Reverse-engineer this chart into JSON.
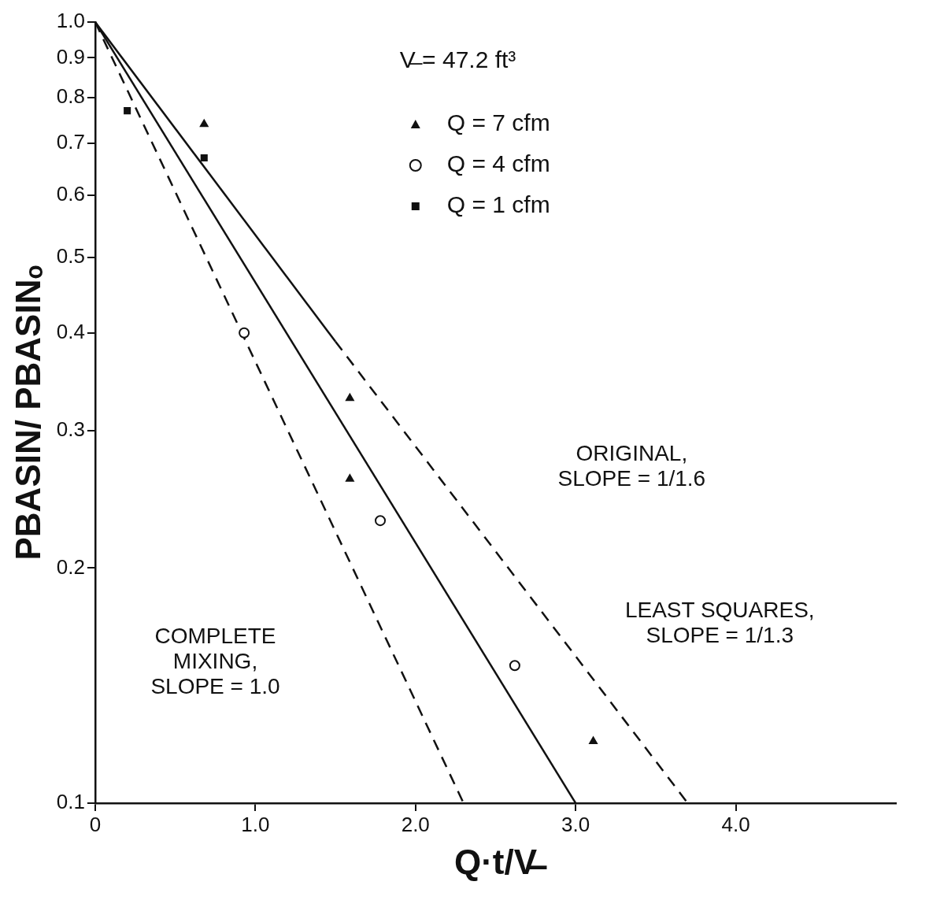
{
  "chart_data": {
    "type": "scatter",
    "xlabel": "Q·t/V̶",
    "ylabel": "PBASIN/ PBASINₒ",
    "log": "y",
    "grid": false,
    "legend": "top",
    "legend_title": "V̶ = 47.2 ft³",
    "xlim": [
      0,
      5
    ],
    "xticks": [
      0,
      {
        "value": 1,
        "label": "1.0"
      },
      {
        "value": 2,
        "label": "2.0"
      },
      {
        "value": 3,
        "label": "3.0"
      },
      {
        "value": 4,
        "label": "4.0"
      }
    ],
    "ylim": [
      0.1,
      1
    ],
    "yticks": [
      0.1,
      0.2,
      0.3,
      0.4,
      0.5,
      0.6,
      0.7,
      0.8,
      0.9,
      {
        "value": 1,
        "label": "1.0"
      }
    ],
    "series": [
      {
        "name": "Q = 7 cfm",
        "type": "scatter",
        "marker": "triangle",
        "color": "#111111",
        "x": [
          0.68,
          1.59,
          1.59,
          3.11
        ],
        "values": [
          0.74,
          0.33,
          0.26,
          0.12
        ]
      },
      {
        "name": "Q = 4 cfm",
        "type": "scatter",
        "marker": "circle",
        "color": "#111111",
        "x": [
          0.93,
          1.78,
          2.62
        ],
        "values": [
          0.4,
          0.23,
          0.15
        ]
      },
      {
        "name": "Q = 1 cfm",
        "type": "scatter",
        "marker": "square",
        "color": "#111111",
        "x": [
          0.2,
          0.68
        ],
        "values": [
          0.77,
          0.67
        ]
      },
      {
        "type": "line",
        "marker": "none",
        "line_style": "solid",
        "color": "#111111",
        "x": [
          0,
          1.5
        ],
        "values": [
          1,
          0.39
        ]
      },
      {
        "type": "line",
        "marker": "none",
        "line_style": "dashed",
        "color": "#111111",
        "x": [
          1.5,
          3.7
        ],
        "values": [
          0.39,
          0.1
        ]
      },
      {
        "type": "line",
        "marker": "none",
        "line_style": "solid",
        "color": "#111111",
        "x": [
          0,
          3
        ],
        "values": [
          1,
          0.1
        ]
      },
      {
        "type": "line",
        "marker": "none",
        "line_style": "dashed",
        "color": "#111111",
        "x": [
          0,
          2.3
        ],
        "values": [
          1,
          0.1
        ]
      }
    ],
    "annotations": [
      "ORIGINAL,\nSLOPE = 1/1.6",
      "LEAST SQUARES,\nSLOPE = 1/1.3",
      "COMPLETE\nMIXING,\nSLOPE = 1.0"
    ]
  }
}
